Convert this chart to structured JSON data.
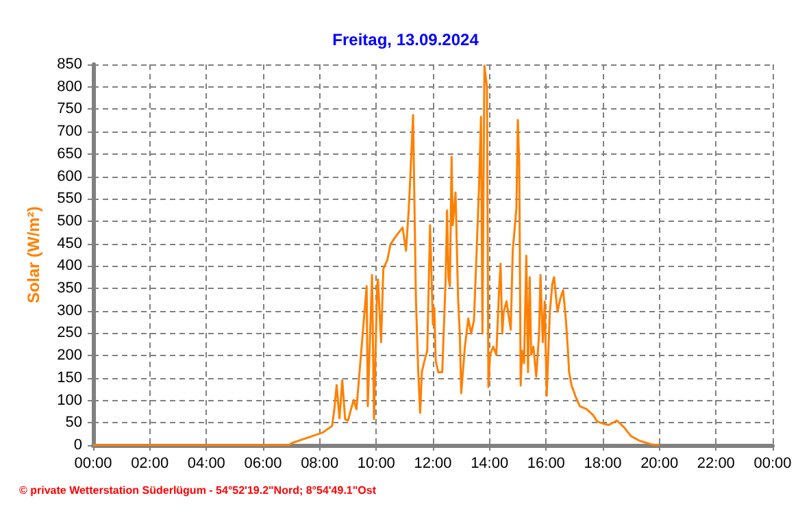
{
  "chart_data": {
    "type": "line",
    "title": "Freitag, 13.09.2024",
    "ylabel": "Solar (W/m²)",
    "x": [
      0,
      6.9,
      7.03,
      7.5,
      8.1,
      8.44,
      8.52,
      8.6,
      8.7,
      8.8,
      8.9,
      9.0,
      9.2,
      9.3,
      9.66,
      9.7,
      9.85,
      9.92,
      10.03,
      10.06,
      10.17,
      10.25,
      10.39,
      10.5,
      10.69,
      10.93,
      11.05,
      11.15,
      11.2,
      11.3,
      11.4,
      11.48,
      11.55,
      11.61,
      11.7,
      11.8,
      11.9,
      12.0,
      12.05,
      12.1,
      12.19,
      12.33,
      12.45,
      12.5,
      12.55,
      12.6,
      12.66,
      12.7,
      12.8,
      12.89,
      12.95,
      13.0,
      13.13,
      13.25,
      13.35,
      13.45,
      13.55,
      13.63,
      13.7,
      13.75,
      13.82,
      13.91,
      13.96,
      14.02,
      14.13,
      14.24,
      14.33,
      14.39,
      14.45,
      14.5,
      14.6,
      14.75,
      14.82,
      14.95,
      15.0,
      15.05,
      15.1,
      15.15,
      15.22,
      15.3,
      15.36,
      15.42,
      15.47,
      15.55,
      15.65,
      15.75,
      15.8,
      15.88,
      15.95,
      16.02,
      16.13,
      16.22,
      16.28,
      16.4,
      16.5,
      16.6,
      16.7,
      16.77,
      16.81,
      16.9,
      17.03,
      17.19,
      17.42,
      17.66,
      17.8,
      17.97,
      18.2,
      18.5,
      18.75,
      19.0,
      19.3,
      19.7,
      20.0
    ],
    "values": [
      0,
      0,
      5,
      15,
      28,
      43,
      81,
      134,
      60,
      145,
      58,
      55,
      101,
      80,
      355,
      87,
      380,
      58,
      355,
      370,
      230,
      394,
      413,
      448,
      466,
      486,
      434,
      529,
      596,
      737,
      327,
      168,
      72,
      163,
      188,
      211,
      491,
      269,
      306,
      188,
      163,
      163,
      370,
      524,
      375,
      355,
      644,
      491,
      564,
      327,
      249,
      116,
      220,
      283,
      249,
      278,
      442,
      578,
      733,
      249,
      847,
      799,
      130,
      202,
      220,
      202,
      336,
      405,
      249,
      298,
      321,
      258,
      434,
      529,
      726,
      626,
      133,
      211,
      183,
      423,
      163,
      375,
      202,
      220,
      153,
      249,
      380,
      230,
      321,
      110,
      298,
      361,
      375,
      298,
      327,
      346,
      278,
      211,
      163,
      133,
      110,
      87,
      81,
      67,
      53,
      49,
      45,
      55,
      40,
      20,
      10,
      2,
      0
    ],
    "color": "#ff8000",
    "xlim": [
      0,
      24
    ],
    "xticks": [
      {
        "value": 0,
        "label": "00:00"
      },
      {
        "value": 2,
        "label": "02:00"
      },
      {
        "value": 4,
        "label": "04:00"
      },
      {
        "value": 6,
        "label": "06:00"
      },
      {
        "value": 8,
        "label": "08:00"
      },
      {
        "value": 10,
        "label": "10:00"
      },
      {
        "value": 12,
        "label": "12:00"
      },
      {
        "value": 14,
        "label": "14:00"
      },
      {
        "value": 16,
        "label": "16:00"
      },
      {
        "value": 18,
        "label": "18:00"
      },
      {
        "value": 20,
        "label": "20:00"
      },
      {
        "value": 22,
        "label": "22:00"
      },
      {
        "value": 24,
        "label": "00:00"
      }
    ],
    "ylim": [
      0,
      850
    ],
    "yticks": [
      0,
      50,
      100,
      150,
      200,
      250,
      300,
      350,
      400,
      450,
      500,
      550,
      600,
      650,
      700,
      750,
      800,
      850
    ],
    "grid": true,
    "marker": "none",
    "line_style": "solid",
    "annotations": [
      "© private Wetterstation Süderlügum - 54°52'19.2\"Nord; 8°54'49.1\"Ost"
    ]
  }
}
